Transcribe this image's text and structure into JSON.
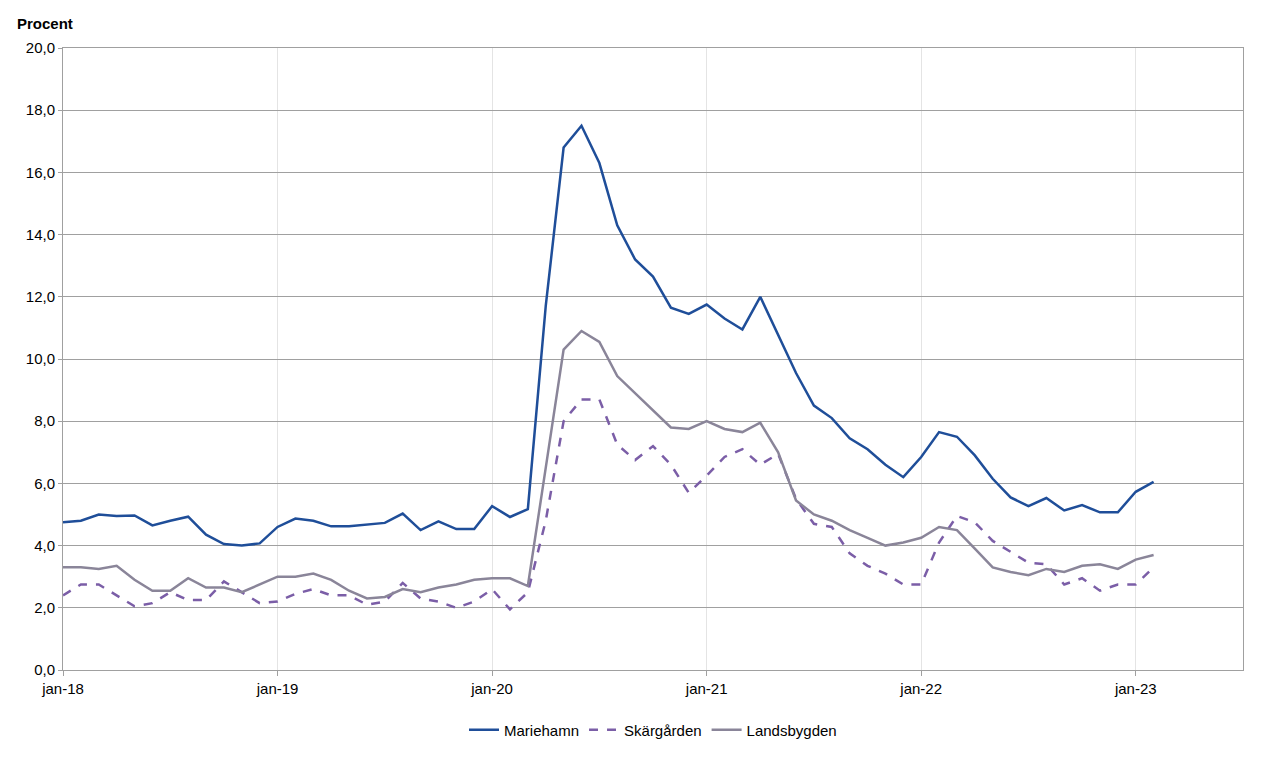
{
  "chart_data": {
    "type": "line",
    "y_label": "Procent",
    "categories": [
      "jan-18",
      null,
      null,
      null,
      null,
      null,
      null,
      null,
      null,
      null,
      null,
      null,
      "jan-19",
      null,
      null,
      null,
      null,
      null,
      null,
      null,
      null,
      null,
      null,
      null,
      "jan-20",
      null,
      null,
      null,
      null,
      null,
      null,
      null,
      null,
      null,
      null,
      null,
      "jan-21",
      null,
      null,
      null,
      null,
      null,
      null,
      null,
      null,
      null,
      null,
      null,
      "jan-22",
      null,
      null,
      null,
      null,
      null,
      null,
      null,
      null,
      null,
      null,
      null,
      "jan-23",
      null,
      null,
      null,
      null,
      null,
      null
    ],
    "series": [
      {
        "name": "Mariehamn",
        "color": "#1f4e99",
        "line_style": "solid",
        "values": [
          4.75,
          4.8,
          5.0,
          4.95,
          4.97,
          4.65,
          4.8,
          4.93,
          4.35,
          4.05,
          4.0,
          4.07,
          4.6,
          4.87,
          4.8,
          4.62,
          4.62,
          4.67,
          4.73,
          5.03,
          4.5,
          4.78,
          4.53,
          4.53,
          5.27,
          4.92,
          5.17,
          11.7,
          16.8,
          17.5,
          16.3,
          14.3,
          13.2,
          12.65,
          11.65,
          11.45,
          11.75,
          11.3,
          10.95,
          12.0,
          10.8,
          9.55,
          8.5,
          8.1,
          7.45,
          7.1,
          6.6,
          6.2,
          6.85,
          7.65,
          7.5,
          6.9,
          6.15,
          5.55,
          5.27,
          5.53,
          5.13,
          5.3,
          5.07,
          5.07,
          5.73,
          6.05,
          null,
          null,
          null,
          null,
          null
        ]
      },
      {
        "name": "Skärgården",
        "color": "#7b5ea7",
        "line_style": "dash",
        "values": [
          2.4,
          2.75,
          2.75,
          2.4,
          2.05,
          2.15,
          2.5,
          2.25,
          2.25,
          2.85,
          2.5,
          2.15,
          2.2,
          2.45,
          2.6,
          2.4,
          2.4,
          2.1,
          2.2,
          2.8,
          2.3,
          2.2,
          2.0,
          2.2,
          2.6,
          1.95,
          2.5,
          4.8,
          8.0,
          8.7,
          8.7,
          7.25,
          6.75,
          7.2,
          6.6,
          5.7,
          6.25,
          6.85,
          7.1,
          6.6,
          6.95,
          5.5,
          4.7,
          4.6,
          3.75,
          3.35,
          3.1,
          2.75,
          2.75,
          4.1,
          4.95,
          4.75,
          4.15,
          3.8,
          3.45,
          3.4,
          2.75,
          2.95,
          2.55,
          2.75,
          2.75,
          3.3,
          null,
          null,
          null,
          null,
          null
        ]
      },
      {
        "name": "Landsbygden",
        "color": "#8a8599",
        "line_style": "solid",
        "values": [
          3.3,
          3.3,
          3.25,
          3.35,
          2.9,
          2.55,
          2.55,
          2.95,
          2.65,
          2.65,
          2.5,
          2.75,
          3.0,
          3.0,
          3.1,
          2.9,
          2.55,
          2.3,
          2.35,
          2.6,
          2.5,
          2.65,
          2.75,
          2.9,
          2.95,
          2.95,
          2.7,
          6.5,
          10.3,
          10.9,
          10.55,
          9.45,
          8.9,
          8.35,
          7.8,
          7.75,
          8.0,
          7.75,
          7.65,
          7.95,
          7.0,
          5.45,
          5.0,
          4.8,
          4.5,
          4.25,
          4.0,
          4.1,
          4.25,
          4.6,
          4.5,
          3.9,
          3.3,
          3.15,
          3.05,
          3.25,
          3.15,
          3.35,
          3.4,
          3.25,
          3.55,
          3.7,
          null,
          null,
          null,
          null,
          null
        ]
      }
    ],
    "ylim": [
      0,
      20
    ],
    "yticks": [
      {
        "value": 0,
        "label": "0,0"
      },
      {
        "value": 2,
        "label": "2,0"
      },
      {
        "value": 4,
        "label": "4,0"
      },
      {
        "value": 6,
        "label": "6,0"
      },
      {
        "value": 8,
        "label": "8,0"
      },
      {
        "value": 10,
        "label": "10,0"
      },
      {
        "value": 12,
        "label": "12,0"
      },
      {
        "value": 14,
        "label": "14,0"
      },
      {
        "value": 16,
        "label": "16,0"
      },
      {
        "value": 18,
        "label": "18,0"
      },
      {
        "value": 20,
        "label": "20,0"
      }
    ],
    "grid": true,
    "legend": "bottom"
  }
}
